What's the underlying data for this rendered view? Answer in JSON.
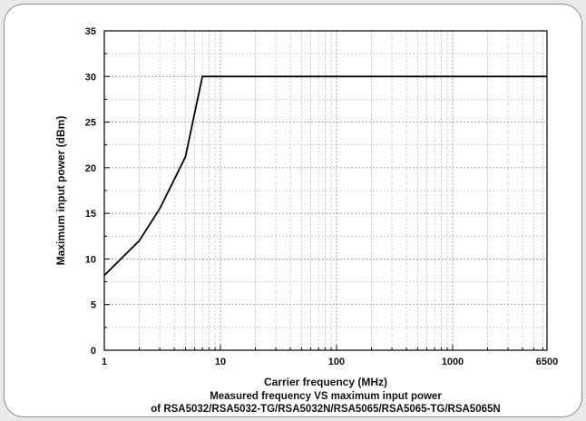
{
  "chart_data": {
    "type": "line",
    "x_scale": "log",
    "xlabel": "Carrier frequency (MHz)",
    "ylabel": "Maximum input power (dBm)",
    "xlim": [
      1,
      6500
    ],
    "ylim": [
      0,
      35
    ],
    "x_ticks": [
      1,
      10,
      100,
      1000,
      6500
    ],
    "x_tick_labels": [
      "1",
      "10",
      "100",
      "1000",
      "6500"
    ],
    "y_ticks": [
      0,
      5,
      10,
      15,
      20,
      25,
      30,
      35
    ],
    "y_tick_labels": [
      "0",
      "5",
      "10",
      "15",
      "20",
      "25",
      "30",
      "35"
    ],
    "grid": true,
    "line_color": "#000000",
    "series": [
      {
        "x": [
          1,
          2,
          3,
          4,
          5,
          6,
          7,
          10,
          100,
          1000,
          6500
        ],
        "y": [
          8.2,
          12,
          15.5,
          18.7,
          21.2,
          26,
          30,
          30,
          30,
          30,
          30
        ]
      }
    ],
    "caption_lines": [
      "Measured frequency VS maximum input power",
      "of RSA5032/RSA5032-TG/RSA5032N/RSA5065/RSA5065-TG/RSA5065N"
    ]
  }
}
